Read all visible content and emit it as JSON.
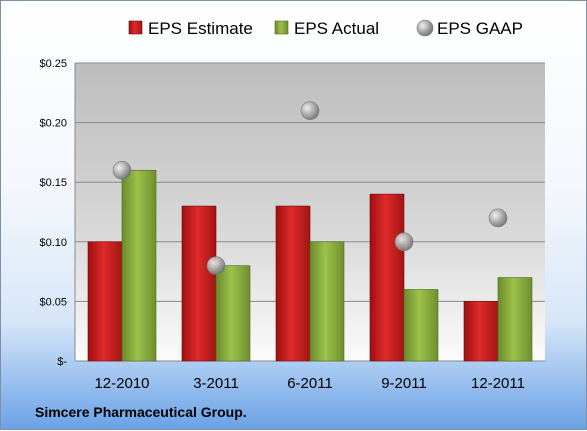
{
  "footer": "Simcere Pharmaceutical Group.",
  "chart_data": {
    "type": "bar",
    "categories": [
      "12-2010",
      "3-2011",
      "6-2011",
      "9-2011",
      "12-2011"
    ],
    "series": [
      {
        "name": "EPS Estimate",
        "type": "bar",
        "color": "#cc1f1f",
        "values": [
          0.1,
          0.13,
          0.13,
          0.14,
          0.05
        ]
      },
      {
        "name": "EPS Actual",
        "type": "bar",
        "color": "#8db33f",
        "values": [
          0.16,
          0.08,
          0.1,
          0.06,
          0.07
        ]
      },
      {
        "name": "EPS GAAP",
        "type": "scatter",
        "color": "#a8a8a8",
        "values": [
          0.16,
          0.08,
          0.21,
          0.1,
          0.12
        ]
      }
    ],
    "ylim": [
      0,
      0.25
    ],
    "yticks": [
      0,
      0.05,
      0.1,
      0.15,
      0.2,
      0.25
    ],
    "ytick_labels": [
      "$-",
      "$0.05",
      "$0.10",
      "$0.15",
      "$0.20",
      "$0.25"
    ],
    "grid": true,
    "legend": "top"
  }
}
